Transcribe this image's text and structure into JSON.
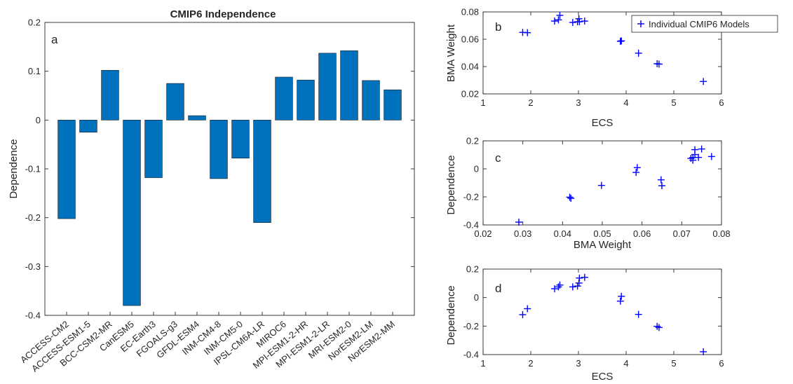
{
  "chart_data": [
    {
      "type": "bar",
      "panel": "a",
      "title": "CMIP6 Independence",
      "xlabel": "",
      "ylabel": "Dependence",
      "ylim": [
        -0.4,
        0.2
      ],
      "yticks": [
        "-0.4",
        "-0.3",
        "-0.2",
        "-0.1",
        "0",
        "0.1",
        "0.2"
      ],
      "categories": [
        "ACCESS-CM2",
        "ACCESS-ESM1-5",
        "BCC-CSM2-MR",
        "CanESM5",
        "EC-Earth3",
        "FGOALS-g3",
        "GFDL-ESM4",
        "INM-CM4-8",
        "INM-CM5-0",
        "IPSL-CM6A-LR",
        "MIROC6",
        "MPI-ESM1-2-HR",
        "MPI-ESM1-2-LR",
        "MRI-ESM2-0",
        "NorESM2-LM",
        "NorESM2-MM"
      ],
      "values": [
        -0.202,
        -0.025,
        0.102,
        -0.38,
        -0.118,
        0.075,
        0.009,
        -0.12,
        -0.078,
        -0.21,
        0.088,
        0.082,
        0.137,
        0.142,
        0.081,
        0.062
      ],
      "color": "#0072BD",
      "grid": false
    },
    {
      "type": "scatter",
      "panel": "b",
      "xlabel": "ECS",
      "ylabel": "BMA Weight",
      "xlim": [
        1,
        6
      ],
      "ylim": [
        0.02,
        0.08
      ],
      "xticks": [
        "1",
        "2",
        "3",
        "4",
        "5",
        "6"
      ],
      "yticks": [
        "0.02",
        "0.04",
        "0.06",
        "0.08"
      ],
      "legend": {
        "label": "Individual CMIP6 Models",
        "placement": "top-right"
      },
      "series": [
        {
          "name": "Individual CMIP6 Models",
          "marker": "+",
          "color": "#0000FF",
          "x": [
            1.83,
            1.93,
            2.5,
            2.58,
            2.61,
            2.88,
            2.98,
            3.01,
            3.02,
            3.13,
            3.88,
            3.9,
            4.26,
            4.65,
            4.69,
            5.62
          ],
          "y": [
            0.065,
            0.0648,
            0.0733,
            0.0742,
            0.0775,
            0.0723,
            0.0728,
            0.075,
            0.0728,
            0.0733,
            0.0585,
            0.0588,
            0.0498,
            0.0421,
            0.0418,
            0.0291
          ]
        }
      ],
      "grid": false
    },
    {
      "type": "scatter",
      "panel": "c",
      "xlabel": "BMA Weight",
      "ylabel": "Dependence",
      "xlim": [
        0.02,
        0.08
      ],
      "ylim": [
        -0.4,
        0.2
      ],
      "xticks": [
        "0.02",
        "0.03",
        "0.04",
        "0.05",
        "0.06",
        "0.07",
        "0.08"
      ],
      "yticks": [
        "-0.4",
        "-0.2",
        "0",
        "0.2"
      ],
      "series": [
        {
          "marker": "+",
          "color": "#0000FF",
          "x": [
            0.029,
            0.0418,
            0.0421,
            0.0498,
            0.0585,
            0.0588,
            0.0648,
            0.065,
            0.0723,
            0.0728,
            0.0728,
            0.0733,
            0.0733,
            0.0742,
            0.075,
            0.0775
          ],
          "y": [
            -0.38,
            -0.202,
            -0.21,
            -0.118,
            -0.025,
            0.009,
            -0.078,
            -0.12,
            0.075,
            0.062,
            0.081,
            0.102,
            0.137,
            0.082,
            0.142,
            0.088
          ]
        }
      ],
      "grid": false
    },
    {
      "type": "scatter",
      "panel": "d",
      "xlabel": "ECS",
      "ylabel": "Dependence",
      "xlim": [
        1,
        6
      ],
      "ylim": [
        -0.4,
        0.2
      ],
      "xticks": [
        "1",
        "2",
        "3",
        "4",
        "5",
        "6"
      ],
      "yticks": [
        "-0.4",
        "-0.2",
        "0",
        "0.2"
      ],
      "series": [
        {
          "marker": "+",
          "color": "#0000FF",
          "x": [
            1.83,
            1.93,
            2.5,
            2.58,
            2.61,
            2.88,
            2.98,
            3.01,
            3.02,
            3.13,
            3.88,
            3.9,
            4.26,
            4.65,
            4.69,
            5.62
          ],
          "y": [
            -0.12,
            -0.078,
            0.062,
            0.075,
            0.088,
            0.075,
            0.081,
            0.102,
            0.137,
            0.142,
            -0.025,
            0.009,
            -0.118,
            -0.202,
            -0.21,
            -0.38
          ]
        }
      ],
      "grid": false
    }
  ]
}
